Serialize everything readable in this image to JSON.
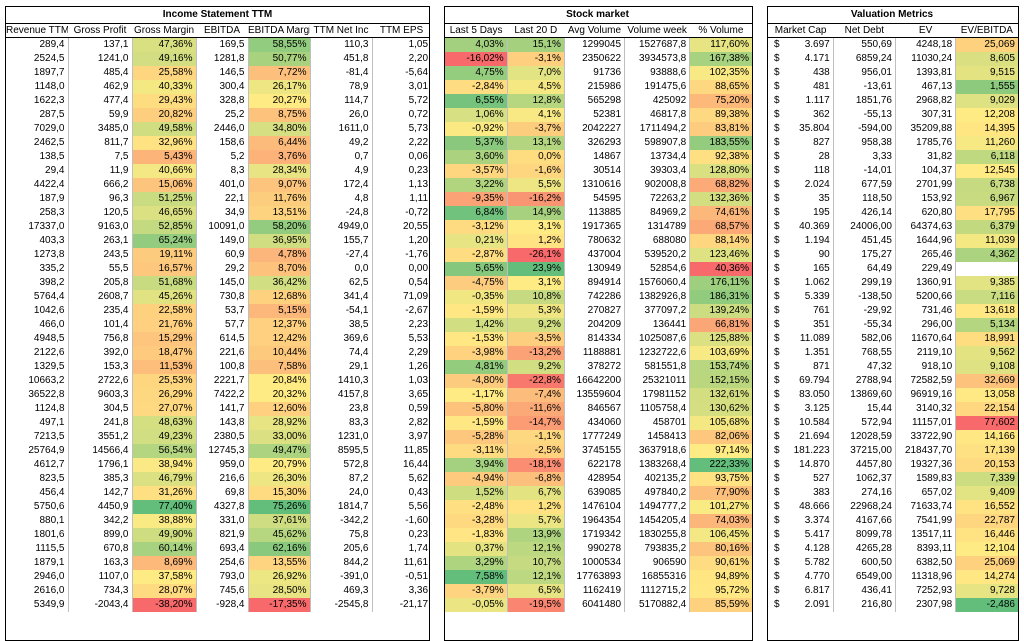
{
  "income": {
    "title": "Income Statement TTM",
    "headers": [
      "Revenue TTM",
      "Gross Profit",
      "Gross Margin",
      "EBITDA",
      "EBITDA Margin",
      "TTM Net Inc",
      "TTM EPS"
    ]
  },
  "stock": {
    "title": "Stock market",
    "headers": [
      "Last 5 Days",
      "Last 20 D",
      "Avg Volume",
      "Volume week",
      "% Volume"
    ]
  },
  "valuation": {
    "title": "Valuation Metrics",
    "headers": [
      "Market Cap",
      "Net Debt",
      "EV",
      "EV/EBITDA"
    ]
  },
  "rows": [
    [
      "289,4",
      "137,1",
      "47,36%",
      "169,5",
      "58,55%",
      "110,3",
      "1,05",
      "4,03%",
      "15,1%",
      "1299045",
      "1527687,8",
      "117,60%",
      "$",
      "3.697",
      "550,69",
      "4248,18",
      "25,069"
    ],
    [
      "2524,5",
      "1241,0",
      "49,16%",
      "1281,8",
      "50,77%",
      "451,8",
      "2,20",
      "-16,02%",
      "-3,1%",
      "2350622",
      "3934573,8",
      "167,38%",
      "$",
      "4.171",
      "6859,24",
      "11030,24",
      "8,605"
    ],
    [
      "1897,7",
      "485,4",
      "25,58%",
      "146,5",
      "7,72%",
      "-81,4",
      "-5,64",
      "4,75%",
      "7,0%",
      "91736",
      "93888,6",
      "102,35%",
      "$",
      "438",
      "956,01",
      "1393,81",
      "9,515"
    ],
    [
      "1148,0",
      "462,9",
      "40,33%",
      "300,4",
      "26,17%",
      "78,9",
      "3,01",
      "-2,84%",
      "4,5%",
      "215986",
      "191475,6",
      "88,65%",
      "$",
      "481",
      "-13,61",
      "467,13",
      "1,555"
    ],
    [
      "1622,3",
      "477,4",
      "29,43%",
      "328,8",
      "20,27%",
      "114,7",
      "5,72",
      "6,55%",
      "12,8%",
      "565298",
      "425092",
      "75,20%",
      "$",
      "1.117",
      "1851,76",
      "2968,82",
      "9,029"
    ],
    [
      "287,5",
      "59,9",
      "20,82%",
      "25,2",
      "8,75%",
      "26,0",
      "0,72",
      "1,06%",
      "4,1%",
      "52381",
      "46817,8",
      "89,38%",
      "$",
      "362",
      "-55,13",
      "307,31",
      "12,208"
    ],
    [
      "7029,0",
      "3485,0",
      "49,58%",
      "2446,0",
      "34,80%",
      "1611,0",
      "5,73",
      "-0,92%",
      "-3,7%",
      "2042227",
      "1711494,2",
      "83,81%",
      "$",
      "35.804",
      "-594,00",
      "35209,88",
      "14,395"
    ],
    [
      "2462,5",
      "811,7",
      "32,96%",
      "158,6",
      "6,44%",
      "49,2",
      "2,22",
      "5,37%",
      "13,1%",
      "326293",
      "598907,8",
      "183,55%",
      "$",
      "827",
      "958,38",
      "1785,76",
      "11,260"
    ],
    [
      "138,5",
      "7,5",
      "5,43%",
      "5,2",
      "3,76%",
      "0,7",
      "0,06",
      "3,60%",
      "0,0%",
      "14867",
      "13734,4",
      "92,38%",
      "$",
      "28",
      "3,33",
      "31,82",
      "6,118"
    ],
    [
      "29,4",
      "11,9",
      "40,66%",
      "8,3",
      "28,34%",
      "4,9",
      "0,23",
      "-3,57%",
      "-1,6%",
      "30514",
      "39303,4",
      "128,80%",
      "$",
      "118",
      "-14,01",
      "104,37",
      "12,545"
    ],
    [
      "4422,4",
      "666,2",
      "15,06%",
      "401,0",
      "9,07%",
      "172,4",
      "1,13",
      "3,22%",
      "5,5%",
      "1310616",
      "902008,8",
      "68,82%",
      "$",
      "2.024",
      "677,59",
      "2701,99",
      "6,738"
    ],
    [
      "187,9",
      "96,3",
      "51,25%",
      "22,1",
      "11,76%",
      "4,8",
      "1,11",
      "-9,35%",
      "-16,2%",
      "54595",
      "72263,2",
      "132,36%",
      "$",
      "35",
      "118,50",
      "153,92",
      "6,967"
    ],
    [
      "258,3",
      "120,5",
      "46,65%",
      "34,9",
      "13,51%",
      "-24,8",
      "-0,72",
      "6,84%",
      "14,9%",
      "113885",
      "84969,2",
      "74,61%",
      "$",
      "195",
      "426,14",
      "620,80",
      "17,795"
    ],
    [
      "17337,0",
      "9163,0",
      "52,85%",
      "10091,0",
      "58,20%",
      "4949,0",
      "20,55",
      "-3,12%",
      "3,1%",
      "1917365",
      "1314789",
      "68,57%",
      "$",
      "40.369",
      "24006,00",
      "64374,63",
      "6,379"
    ],
    [
      "403,3",
      "263,1",
      "65,24%",
      "149,0",
      "36,95%",
      "155,7",
      "1,20",
      "0,21%",
      "1,2%",
      "780632",
      "688080",
      "88,14%",
      "$",
      "1.194",
      "451,45",
      "1644,96",
      "11,039"
    ],
    [
      "1273,8",
      "243,5",
      "19,11%",
      "60,9",
      "4,78%",
      "-27,4",
      "-1,76",
      "-2,87%",
      "-26,1%",
      "437004",
      "539520,2",
      "123,46%",
      "$",
      "90",
      "175,27",
      "265,46",
      "4,362"
    ],
    [
      "335,2",
      "55,5",
      "16,57%",
      "29,2",
      "8,70%",
      "0,0",
      "0,00",
      "5,65%",
      "23,9%",
      "130949",
      "52854,6",
      "40,36%",
      "$",
      "165",
      "64,49",
      "229,49",
      ""
    ],
    [
      "398,2",
      "205,8",
      "51,68%",
      "145,0",
      "36,42%",
      "62,5",
      "0,54",
      "-4,75%",
      "3,1%",
      "894914",
      "1576060,4",
      "176,11%",
      "$",
      "1.062",
      "299,19",
      "1360,91",
      "9,385"
    ],
    [
      "5764,4",
      "2608,7",
      "45,26%",
      "730,8",
      "12,68%",
      "341,4",
      "71,09",
      "-0,35%",
      "10,8%",
      "742286",
      "1382926,8",
      "186,31%",
      "$",
      "5.339",
      "-138,50",
      "5200,66",
      "7,116"
    ],
    [
      "1042,6",
      "235,4",
      "22,58%",
      "53,7",
      "5,15%",
      "-54,1",
      "-2,67",
      "-1,59%",
      "5,3%",
      "270827",
      "377097,2",
      "139,24%",
      "$",
      "761",
      "-29,92",
      "731,46",
      "13,618"
    ],
    [
      "466,0",
      "101,4",
      "21,76%",
      "57,7",
      "12,37%",
      "38,5",
      "2,23",
      "1,42%",
      "9,2%",
      "204209",
      "136441",
      "66,81%",
      "$",
      "351",
      "-55,34",
      "296,00",
      "5,134"
    ],
    [
      "4948,5",
      "756,8",
      "15,29%",
      "614,5",
      "12,42%",
      "369,6",
      "5,53",
      "-1,53%",
      "-3,5%",
      "814334",
      "1025087,6",
      "125,88%",
      "$",
      "11.089",
      "582,06",
      "11670,64",
      "18,991"
    ],
    [
      "2122,6",
      "392,0",
      "18,47%",
      "221,6",
      "10,44%",
      "74,4",
      "2,29",
      "-3,98%",
      "-13,2%",
      "1188881",
      "1232722,6",
      "103,69%",
      "$",
      "1.351",
      "768,55",
      "2119,10",
      "9,562"
    ],
    [
      "1329,5",
      "153,3",
      "11,53%",
      "100,8",
      "7,58%",
      "29,1",
      "1,26",
      "4,81%",
      "9,2%",
      "378272",
      "581551,8",
      "153,74%",
      "$",
      "871",
      "47,32",
      "918,10",
      "9,108"
    ],
    [
      "10663,2",
      "2722,6",
      "25,53%",
      "2221,7",
      "20,84%",
      "1410,3",
      "1,03",
      "-4,80%",
      "-22,8%",
      "16642200",
      "25321011",
      "152,15%",
      "$",
      "69.794",
      "2788,94",
      "72582,59",
      "32,669"
    ],
    [
      "36522,8",
      "9603,3",
      "26,29%",
      "7422,2",
      "20,32%",
      "4157,8",
      "3,65",
      "-1,17%",
      "-7,4%",
      "13559604",
      "17981152",
      "132,61%",
      "$",
      "83.050",
      "13869,60",
      "96919,16",
      "13,058"
    ],
    [
      "1124,8",
      "304,5",
      "27,07%",
      "141,7",
      "12,60%",
      "23,8",
      "0,59",
      "-5,80%",
      "-11,6%",
      "846567",
      "1105758,4",
      "130,62%",
      "$",
      "3.125",
      "15,44",
      "3140,32",
      "22,154"
    ],
    [
      "497,1",
      "241,8",
      "48,63%",
      "143,8",
      "28,92%",
      "83,3",
      "2,82",
      "-1,59%",
      "-14,7%",
      "434060",
      "458701",
      "105,68%",
      "$",
      "10.584",
      "572,94",
      "11157,01",
      "77,602"
    ],
    [
      "7213,5",
      "3551,2",
      "49,23%",
      "2380,5",
      "33,00%",
      "1231,0",
      "3,97",
      "-5,28%",
      "-1,1%",
      "1777249",
      "1458413",
      "82,06%",
      "$",
      "21.694",
      "12028,59",
      "33722,90",
      "14,166"
    ],
    [
      "25764,9",
      "14566,4",
      "56,54%",
      "12745,3",
      "49,47%",
      "8595,5",
      "11,85",
      "-3,11%",
      "-2,5%",
      "3745155",
      "3637918,6",
      "97,14%",
      "$",
      "181.223",
      "37215,00",
      "218437,70",
      "17,139"
    ],
    [
      "4612,7",
      "1796,1",
      "38,94%",
      "959,0",
      "20,79%",
      "572,8",
      "16,44",
      "3,94%",
      "-18,1%",
      "622178",
      "1383268,4",
      "222,33%",
      "$",
      "14.870",
      "4457,80",
      "19327,36",
      "20,153"
    ],
    [
      "823,5",
      "385,3",
      "46,79%",
      "216,6",
      "26,30%",
      "87,2",
      "5,62",
      "-4,94%",
      "-6,8%",
      "428954",
      "402135,2",
      "93,75%",
      "$",
      "527",
      "1062,37",
      "1589,83",
      "7,339"
    ],
    [
      "456,4",
      "142,7",
      "31,26%",
      "69,8",
      "15,30%",
      "24,0",
      "0,43",
      "1,52%",
      "6,7%",
      "639085",
      "497840,2",
      "77,90%",
      "$",
      "383",
      "274,16",
      "657,02",
      "9,409"
    ],
    [
      "5750,6",
      "4450,9",
      "77,40%",
      "4327,8",
      "75,26%",
      "1814,7",
      "5,56",
      "-2,48%",
      "1,2%",
      "1476104",
      "1494777,2",
      "101,27%",
      "$",
      "48.666",
      "22968,24",
      "71633,74",
      "16,552"
    ],
    [
      "880,1",
      "342,2",
      "38,88%",
      "331,0",
      "37,61%",
      "-342,2",
      "-1,60",
      "-3,28%",
      "5,7%",
      "1964354",
      "1454205,4",
      "74,03%",
      "$",
      "3.374",
      "4167,66",
      "7541,99",
      "22,787"
    ],
    [
      "1801,6",
      "899,0",
      "49,90%",
      "821,9",
      "45,62%",
      "75,8",
      "0,23",
      "-1,83%",
      "13,9%",
      "1719342",
      "1830255,8",
      "106,45%",
      "$",
      "5.417",
      "8099,78",
      "13517,11",
      "16,446"
    ],
    [
      "1115,5",
      "670,8",
      "60,14%",
      "693,4",
      "62,16%",
      "205,6",
      "1,74",
      "0,37%",
      "12,1%",
      "990278",
      "793835,2",
      "80,16%",
      "$",
      "4.128",
      "4265,28",
      "8393,11",
      "12,104"
    ],
    [
      "1879,1",
      "163,3",
      "8,69%",
      "254,6",
      "13,55%",
      "844,2",
      "11,61",
      "3,29%",
      "10,7%",
      "1000534",
      "906590",
      "90,61%",
      "$",
      "5.782",
      "600,50",
      "6382,50",
      "25,069"
    ],
    [
      "2946,0",
      "1107,0",
      "37,58%",
      "793,0",
      "26,92%",
      "-391,0",
      "-0,51",
      "7,58%",
      "12,1%",
      "17763893",
      "16855316",
      "94,89%",
      "$",
      "4.770",
      "6549,00",
      "11318,96",
      "14,274"
    ],
    [
      "2616,0",
      "734,3",
      "28,07%",
      "745,6",
      "28,50%",
      "469,3",
      "3,36",
      "-3,79%",
      "6,5%",
      "1162419",
      "1112715,2",
      "95,72%",
      "$",
      "6.817",
      "436,41",
      "7252,93",
      "9,728"
    ],
    [
      "5349,9",
      "-2043,4",
      "-38,20%",
      "-928,4",
      "-17,35%",
      "-2545,8",
      "-21,17",
      "-0,05%",
      "-19,5%",
      "6041480",
      "5170882,4",
      "85,59%",
      "$",
      "2.091",
      "216,80",
      "2307,98",
      "-2,486"
    ]
  ],
  "colors": {
    "high": "#63be7b",
    "mid": "#ffeb84",
    "low": "#f8696b"
  }
}
